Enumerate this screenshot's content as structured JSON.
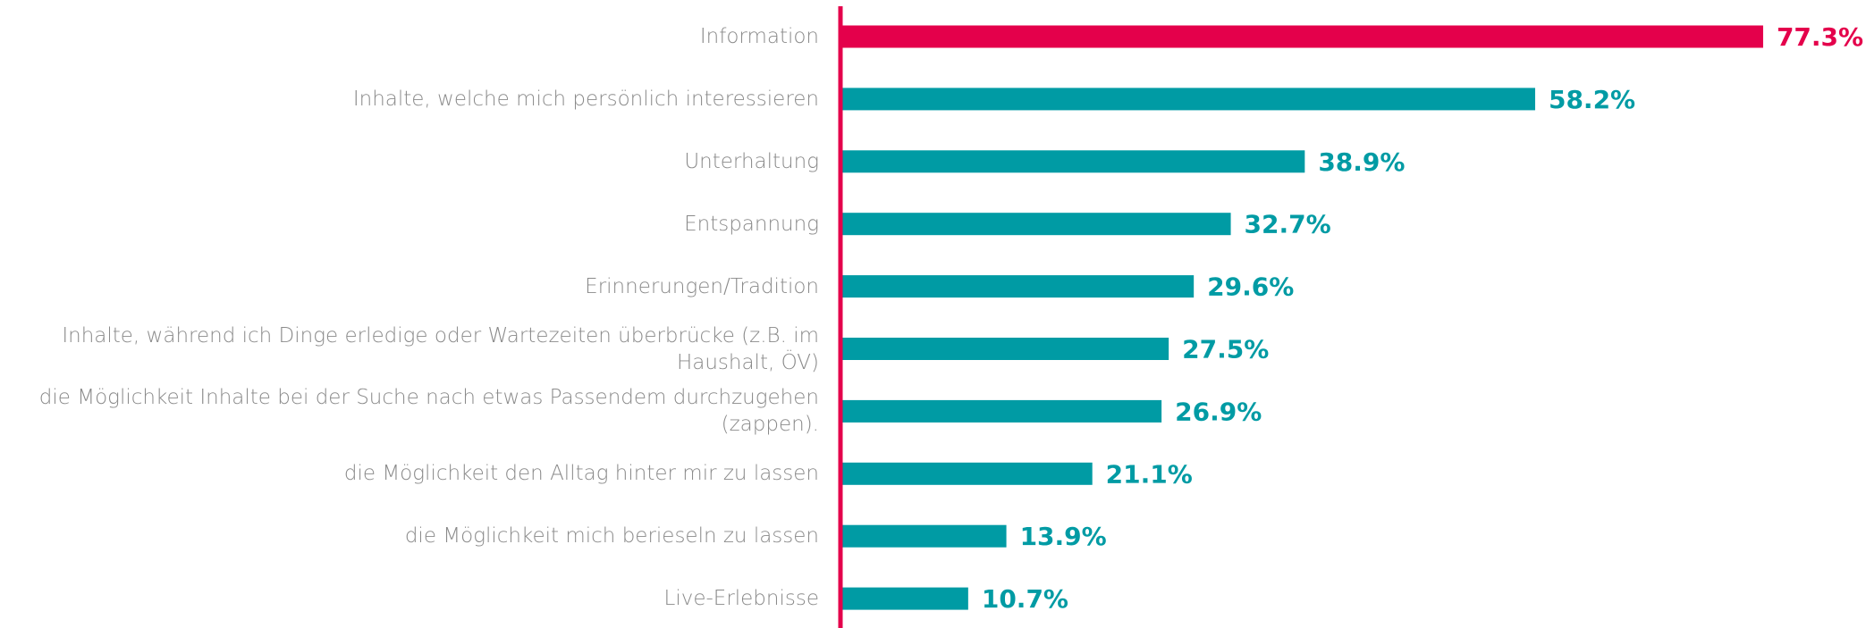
{
  "chart_data": {
    "type": "bar",
    "orientation": "horizontal",
    "categories": [
      "Information",
      "Inhalte, welche mich persönlich interessieren",
      "Unterhaltung",
      "Entspannung",
      "Erinnerungen/Tradition",
      "Inhalte, während ich Dinge erledige oder Wartezeiten überbrücke (z.B. im Haushalt, ÖV)",
      "die Möglichkeit Inhalte bei der Suche nach etwas Passendem durchzugehen (zappen).",
      "die Möglichkeit den Alltag hinter mir zu lassen",
      "die Möglichkeit mich berieseln zu lassen",
      "Live-Erlebnisse"
    ],
    "values": [
      77.3,
      58.2,
      38.9,
      32.7,
      29.6,
      27.5,
      26.9,
      21.1,
      13.9,
      10.7
    ],
    "value_labels": [
      "77.3%",
      "58.2%",
      "38.9%",
      "32.7%",
      "29.6%",
      "27.5%",
      "26.9%",
      "21.1%",
      "13.9%",
      "10.7%"
    ],
    "colors": [
      "#e4004b",
      "#009ba4",
      "#009ba4",
      "#009ba4",
      "#009ba4",
      "#009ba4",
      "#009ba4",
      "#009ba4",
      "#009ba4",
      "#009ba4"
    ],
    "axis_color": "#e4004b",
    "xlim": [
      0,
      100
    ]
  }
}
